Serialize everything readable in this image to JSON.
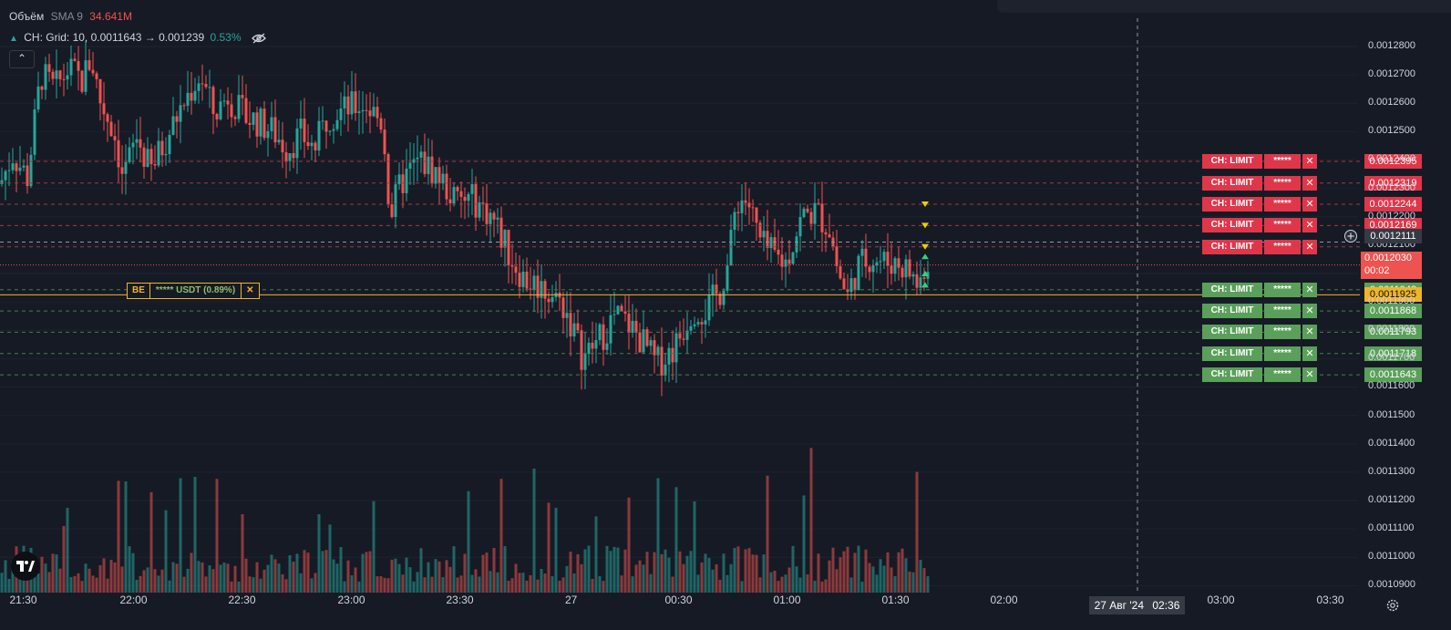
{
  "legend": {
    "volume_label": "Объём",
    "sma_label": "SMA 9",
    "sma_value": "34.641M",
    "grid_prefix": "CH: Grid: 10, 0.0011643 → 0.001239",
    "grid_pct": "0.53%"
  },
  "be_badge": {
    "label": "BE",
    "text": "***** USDT (0.89%)"
  },
  "order_tag": {
    "label": "CH: LIMIT",
    "mask": "*****"
  },
  "current_price": {
    "value": "0.0012030",
    "countdown": "00:02"
  },
  "crosshair": {
    "price": "0.0012111",
    "time_date": "27 Авг '24",
    "time_clock": "02:36"
  },
  "colors": {
    "up": "#26a69a",
    "down": "#ef5350",
    "sell": "#e0364a",
    "buy": "#5aa05a",
    "be": "#f0b429",
    "bg": "#161a25"
  },
  "icons": [
    "plus-circle-icon",
    "settings-gear-icon",
    "close-x-icon",
    "chevron-up-icon",
    "tradingview-logo-icon",
    "eye-off-icon"
  ],
  "chart_data": {
    "type": "candlestick",
    "price_axis": {
      "range": [
        0.0010885,
        0.0012845
      ],
      "ticks": [
        "0.0012800",
        "0.0012700",
        "0.0012600",
        "0.0012500",
        "0.0012400",
        "0.0012300",
        "0.0012200",
        "0.0012100",
        "0.0012000",
        "0.0011900",
        "0.0011800",
        "0.0011700",
        "0.0011600",
        "0.0011500",
        "0.0011400",
        "0.0011300",
        "0.0011200",
        "0.0011100",
        "0.0011000",
        "0.0010900"
      ]
    },
    "time_axis": {
      "ticks": [
        "21:30",
        "22:00",
        "22:30",
        "23:00",
        "23:30",
        "27",
        "00:30",
        "01:00",
        "01:30",
        "02:00",
        "03:00",
        "03:30"
      ]
    },
    "series": [
      {
        "name": "Объём",
        "type": "volume"
      }
    ],
    "sell_orders": [
      {
        "price": 0.0012395,
        "label": "0.0012395"
      },
      {
        "price": 0.0012319,
        "label": "0.0012319"
      },
      {
        "price": 0.0012244,
        "label": "0.0012244"
      },
      {
        "price": 0.0012169,
        "label": "0.0012169"
      },
      {
        "price": 0.0012094,
        "label": ""
      }
    ],
    "buy_orders": [
      {
        "price": 0.0011943,
        "label": "0.0011943"
      },
      {
        "price": 0.0011868,
        "label": "0.0011868"
      },
      {
        "price": 0.0011793,
        "label": "0.0011793"
      },
      {
        "price": 0.0011718,
        "label": "0.0011718"
      },
      {
        "price": 0.0011643,
        "label": "0.0011643"
      }
    ],
    "be_line": {
      "price": 0.0011925,
      "label": "0.0011925"
    },
    "anchors": [
      [
        0,
        0.0012315
      ],
      [
        14,
        0.001242
      ],
      [
        30,
        0.001234
      ],
      [
        45,
        0.00127
      ],
      [
        60,
        0.001265
      ],
      [
        75,
        0.001272
      ],
      [
        90,
        0.001268
      ],
      [
        100,
        0.001276
      ],
      [
        110,
        0.001261
      ],
      [
        125,
        0.00125
      ],
      [
        135,
        0.001234
      ],
      [
        150,
        0.001248
      ],
      [
        165,
        0.001236
      ],
      [
        180,
        0.001246
      ],
      [
        195,
        0.001256
      ],
      [
        210,
        0.001265
      ],
      [
        220,
        0.00127
      ],
      [
        235,
        0.001256
      ],
      [
        250,
        0.001263
      ],
      [
        265,
        0.001256
      ],
      [
        280,
        0.001254
      ],
      [
        300,
        0.00125
      ],
      [
        315,
        0.001244
      ],
      [
        330,
        0.001249
      ],
      [
        345,
        0.001244
      ],
      [
        360,
        0.001256
      ],
      [
        380,
        0.001258
      ],
      [
        400,
        0.00126
      ],
      [
        420,
        0.001253
      ],
      [
        428,
        0.00122
      ],
      [
        440,
        0.001232
      ],
      [
        460,
        0.00124
      ],
      [
        480,
        0.001235
      ],
      [
        500,
        0.001225
      ],
      [
        520,
        0.001226
      ],
      [
        540,
        0.00122
      ],
      [
        560,
        0.001206
      ],
      [
        575,
        0.001198
      ],
      [
        590,
        0.001196
      ],
      [
        605,
        0.001193
      ],
      [
        620,
        0.001188
      ],
      [
        640,
        0.00117
      ],
      [
        660,
        0.001178
      ],
      [
        675,
        0.001185
      ],
      [
        690,
        0.001182
      ],
      [
        705,
        0.001176
      ],
      [
        720,
        0.001168
      ],
      [
        740,
        0.001174
      ],
      [
        760,
        0.001188
      ],
      [
        775,
        0.001187
      ],
      [
        790,
        0.001194
      ],
      [
        800,
        0.001205
      ],
      [
        808,
        0.001226
      ],
      [
        820,
        0.001226
      ],
      [
        835,
        0.00121
      ],
      [
        850,
        0.001206
      ],
      [
        862,
        0.001204
      ],
      [
        880,
        0.00122
      ],
      [
        895,
        0.001222
      ],
      [
        910,
        0.001216
      ],
      [
        920,
        0.0012
      ],
      [
        930,
        0.001192
      ],
      [
        940,
        0.001202
      ],
      [
        955,
        0.001206
      ],
      [
        970,
        0.001204
      ],
      [
        985,
        0.001204
      ],
      [
        1000,
        0.0012
      ],
      [
        1008,
        0.001195
      ],
      [
        1015,
        0.001204
      ],
      [
        1020,
        0.001203
      ]
    ],
    "volume_range_M": [
      0,
      160
    ]
  }
}
